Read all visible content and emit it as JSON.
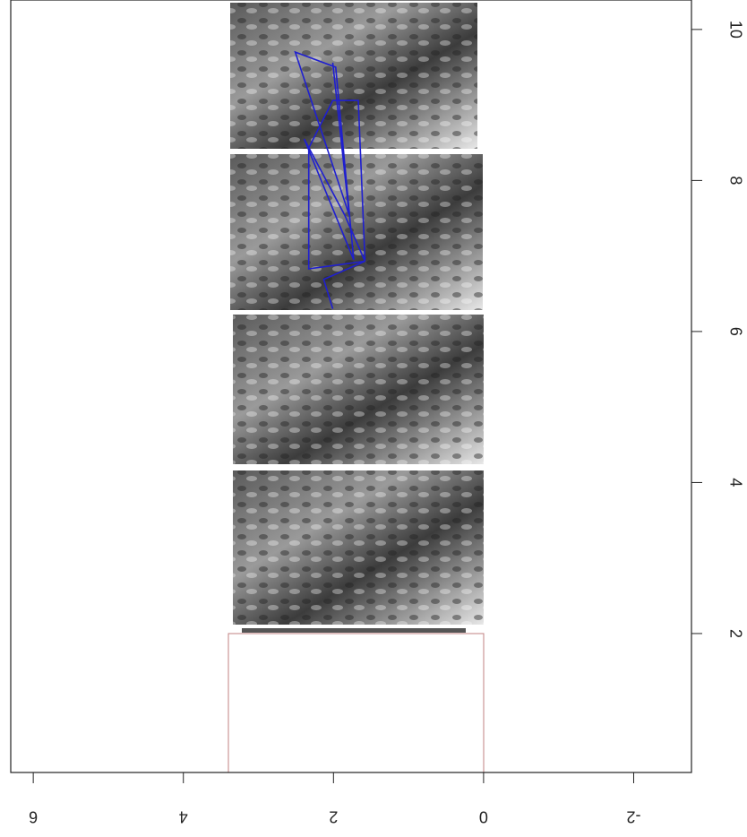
{
  "chart_data": {
    "type": "line",
    "x": [
      6.3,
      6.69,
      6.93,
      6.83,
      8.43,
      9.06,
      9.06,
      6.93,
      7.54,
      8.55,
      6.95,
      9.5,
      9.7,
      7.54,
      9.56
    ],
    "series": [
      {
        "color": "#1f1fd0",
        "values": [
          2.01,
          2.13,
          1.58,
          2.33,
          2.33,
          2.01,
          1.67,
          1.58,
          1.85,
          2.39,
          1.73,
          1.97,
          2.51,
          1.79,
          2.01
        ]
      }
    ],
    "xlim": [
      0.16,
      10.39
    ],
    "xticks": [
      2,
      4,
      6,
      8,
      10
    ],
    "ylim": [
      6.3,
      -2.77
    ],
    "yticks": [
      -2,
      0,
      2,
      4,
      6
    ]
  }
}
